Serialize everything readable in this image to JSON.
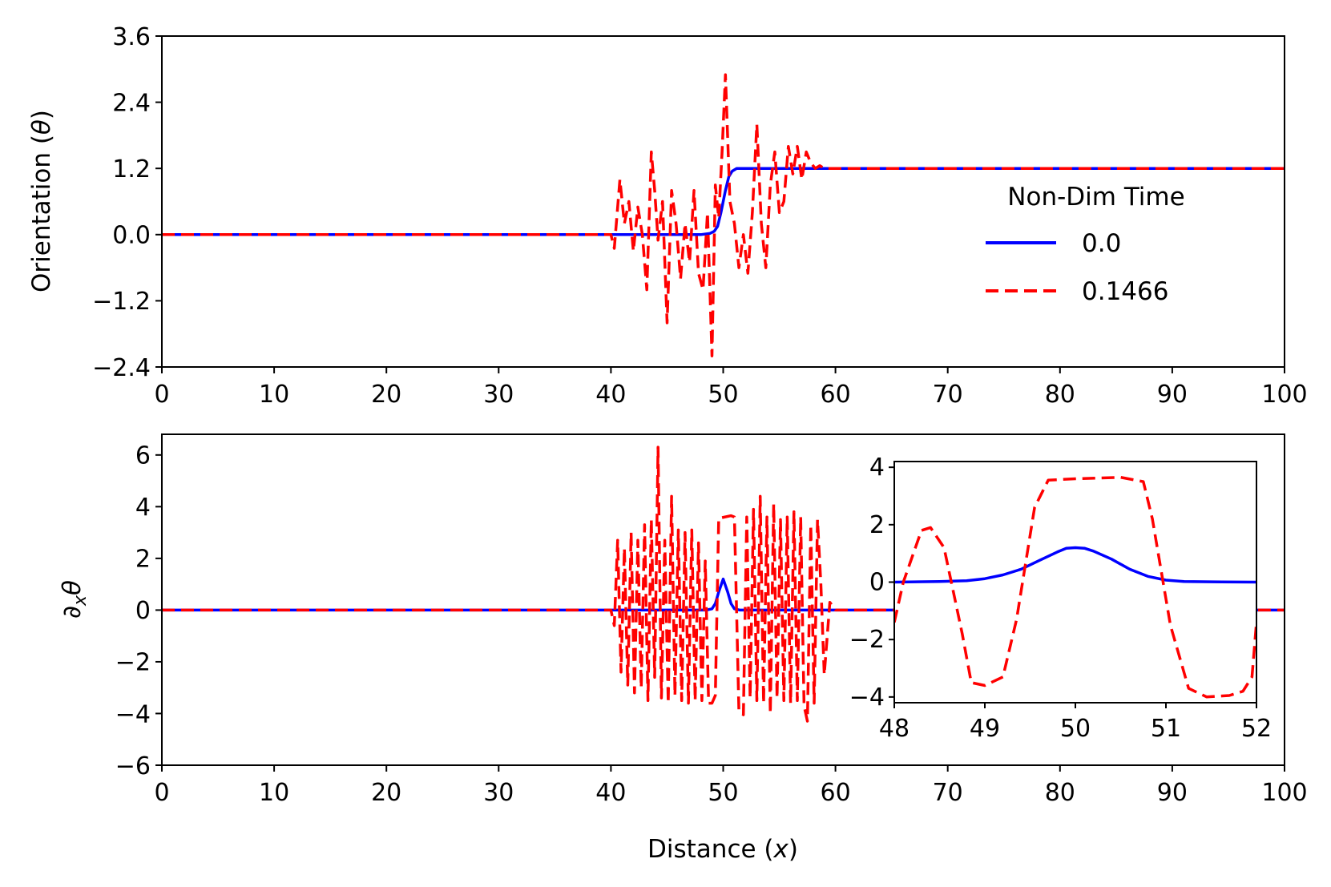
{
  "chart_data": [
    {
      "id": "top",
      "type": "line",
      "xlabel": "Distance (x)",
      "ylabel_text": "Orientation (θ)",
      "xlim": [
        0,
        100
      ],
      "ylim": [
        -2.4,
        3.6
      ],
      "xticks": [
        "0",
        "10",
        "20",
        "30",
        "40",
        "50",
        "60",
        "70",
        "80",
        "90",
        "100"
      ],
      "yticks": [
        "−2.4",
        "−1.2",
        "0.0",
        "1.2",
        "2.4",
        "3.6"
      ],
      "legend": {
        "title": "Non-Dim Time",
        "position": "center-right",
        "entries": [
          "0.0",
          "0.1466"
        ]
      },
      "series": [
        {
          "name": "0.0",
          "color": "#0000ff",
          "style": "solid",
          "x": [
            0,
            40,
            48,
            48.8,
            49.2,
            49.5,
            49.8,
            50,
            50.2,
            50.5,
            50.8,
            51.2,
            52,
            60,
            100
          ],
          "y": [
            0,
            0,
            0,
            0.02,
            0.06,
            0.15,
            0.4,
            0.6,
            0.8,
            1.05,
            1.15,
            1.2,
            1.2,
            1.2,
            1.2
          ]
        },
        {
          "name": "0.1466",
          "color": "#ff0000",
          "style": "dashed",
          "x": [
            0,
            40,
            40.3,
            40.8,
            41.2,
            41.6,
            42,
            42.4,
            42.8,
            43.2,
            43.6,
            43.9,
            44.2,
            44.6,
            45,
            45.4,
            45.8,
            46.2,
            46.6,
            47,
            47.4,
            47.8,
            48.2,
            48.6,
            49,
            49.3,
            49.6,
            49.9,
            50.2,
            50.6,
            51,
            51.4,
            51.8,
            52.2,
            52.6,
            53,
            53.4,
            53.8,
            54.2,
            54.6,
            55,
            55.4,
            55.8,
            56.2,
            56.6,
            57,
            57.4,
            57.8,
            58.2,
            58.6,
            59,
            59.5,
            60,
            100
          ],
          "y": [
            0,
            0,
            -0.25,
            1.0,
            0.2,
            0.6,
            -0.3,
            0.5,
            0.0,
            -1.0,
            1.5,
            0.8,
            -0.1,
            0.6,
            -1.6,
            0.8,
            0.2,
            -0.8,
            0.2,
            -0.5,
            0.8,
            -0.7,
            -1.0,
            0.4,
            -2.2,
            0.9,
            0.3,
            1.5,
            2.9,
            0.6,
            0.2,
            -0.6,
            0.0,
            -0.7,
            0.4,
            2.0,
            0.2,
            -0.6,
            0.9,
            1.5,
            0.4,
            0.6,
            1.6,
            1.1,
            1.6,
            1.0,
            1.5,
            1.3,
            1.2,
            1.25,
            1.2,
            1.2,
            1.2,
            1.2
          ]
        }
      ]
    },
    {
      "id": "bottom",
      "type": "line",
      "xlabel": "Distance (x)",
      "ylabel_text": "∂xθ",
      "xlim": [
        0,
        100
      ],
      "ylim": [
        -6,
        6.8
      ],
      "xticks": [
        "0",
        "10",
        "20",
        "30",
        "40",
        "50",
        "60",
        "70",
        "80",
        "90",
        "100"
      ],
      "yticks": [
        "−6",
        "−4",
        "−2",
        "0",
        "2",
        "4",
        "6"
      ],
      "series": [
        {
          "name": "0.0",
          "color": "#0000ff",
          "style": "solid",
          "x": [
            0,
            40,
            48.5,
            49,
            49.3,
            49.6,
            50,
            50.4,
            50.7,
            51,
            51.5,
            60,
            100
          ],
          "y": [
            0,
            0,
            0,
            0.05,
            0.25,
            0.7,
            1.2,
            0.7,
            0.25,
            0.05,
            0,
            0,
            0
          ]
        },
        {
          "name": "0.1466",
          "color": "#ff0000",
          "style": "dashed",
          "x": [
            0,
            40,
            40.3,
            40.6,
            40.9,
            41.2,
            41.5,
            41.8,
            42.1,
            42.4,
            42.7,
            43,
            43.3,
            43.6,
            43.9,
            44.2,
            44.5,
            44.8,
            45.1,
            45.4,
            45.7,
            46,
            46.3,
            46.6,
            46.9,
            47.2,
            47.5,
            47.8,
            48.1,
            48.4,
            48.7,
            49,
            49.3,
            49.6,
            50.7,
            51,
            51.4,
            51.8,
            52.1,
            52.4,
            52.7,
            53,
            53.3,
            53.6,
            53.9,
            54.2,
            54.5,
            54.8,
            55.1,
            55.4,
            55.7,
            56,
            56.3,
            56.6,
            56.9,
            57.2,
            57.5,
            57.8,
            58.1,
            58.4,
            58.7,
            59,
            59.5,
            60,
            100
          ],
          "y": [
            0,
            0,
            -0.6,
            2.7,
            -2.4,
            2.4,
            -2.9,
            3.0,
            -3.2,
            2.7,
            -3.0,
            3.3,
            -3.5,
            3.5,
            -2.6,
            6.3,
            -3.4,
            2.7,
            -3.6,
            4.4,
            -3.3,
            3.1,
            -3.5,
            3.0,
            -3.6,
            3.1,
            -3.5,
            2.6,
            -3.5,
            1.9,
            -3.6,
            -3.6,
            -3.3,
            3.55,
            3.65,
            3.6,
            -3.9,
            -4.05,
            3.6,
            -3.4,
            3.9,
            -3.5,
            4.4,
            -3.6,
            3.6,
            -4.0,
            4.1,
            -3.4,
            3.5,
            -3.5,
            3.6,
            -3.6,
            3.8,
            -3.5,
            3.6,
            -3.7,
            -4.3,
            3.3,
            -3.6,
            3.5,
            1.0,
            -2.5,
            0.3,
            0,
            0
          ]
        }
      ]
    },
    {
      "id": "inset",
      "type": "line",
      "xlim": [
        48,
        52
      ],
      "ylim": [
        -4.2,
        4.2
      ],
      "xticks": [
        "48",
        "49",
        "50",
        "51",
        "52"
      ],
      "yticks": [
        "−4",
        "−2",
        "0",
        "2",
        "4"
      ],
      "series": [
        {
          "name": "0.0",
          "color": "#0000ff",
          "style": "solid",
          "x": [
            48,
            48.5,
            48.8,
            49,
            49.2,
            49.4,
            49.6,
            49.8,
            49.9,
            50,
            50.1,
            50.2,
            50.4,
            50.6,
            50.8,
            51,
            51.2,
            51.5,
            52
          ],
          "y": [
            0,
            0.02,
            0.05,
            0.12,
            0.25,
            0.45,
            0.75,
            1.05,
            1.18,
            1.2,
            1.18,
            1.08,
            0.8,
            0.45,
            0.2,
            0.07,
            0.02,
            0.01,
            0
          ]
        },
        {
          "name": "0.1466",
          "color": "#ff0000",
          "style": "dashed",
          "x": [
            48,
            48.1,
            48.3,
            48.4,
            48.55,
            48.75,
            48.85,
            49,
            49.2,
            49.35,
            49.55,
            49.7,
            50,
            50.5,
            50.75,
            50.85,
            51.05,
            51.25,
            51.45,
            51.7,
            51.85,
            51.95,
            52
          ],
          "y": [
            -1.4,
            0.0,
            1.8,
            1.9,
            1.2,
            -1.8,
            -3.5,
            -3.6,
            -3.3,
            -1.3,
            2.6,
            3.55,
            3.6,
            3.65,
            3.5,
            2.2,
            -1.5,
            -3.7,
            -4.0,
            -3.95,
            -3.8,
            -3.3,
            -1.4
          ]
        }
      ]
    }
  ]
}
